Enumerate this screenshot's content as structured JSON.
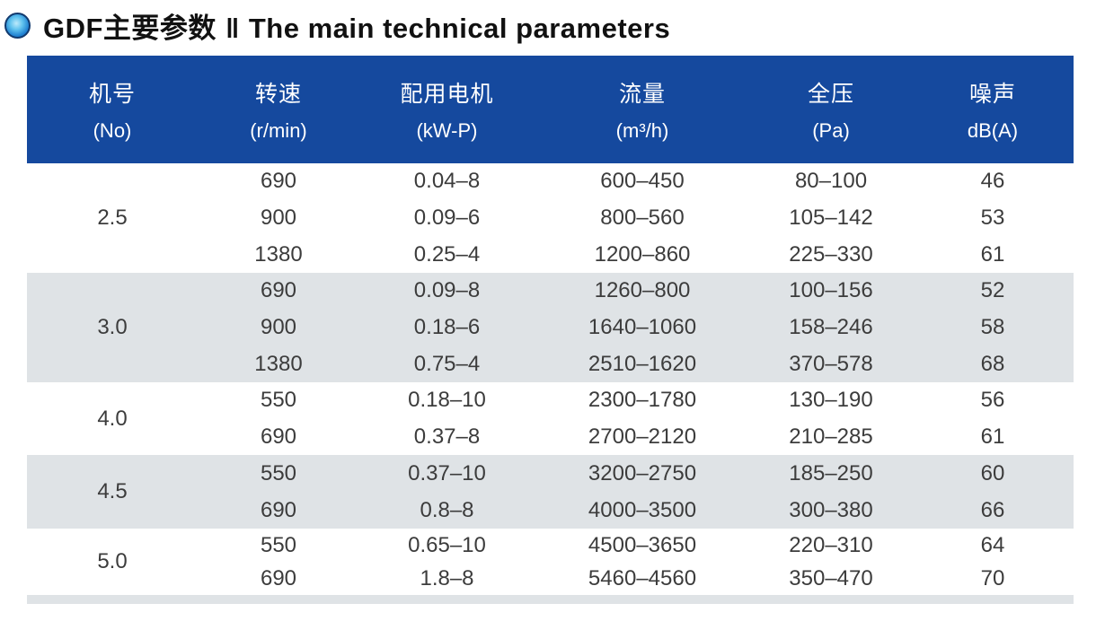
{
  "title": {
    "bullet_icon": "blue-sphere-bullet",
    "text_cn": "GDF主要参数",
    "separator": "‖",
    "text_en": "The main technical parameters"
  },
  "colors": {
    "header_bg": "#15499e",
    "header_text": "#ffffff",
    "alt_row_bg": "#dfe3e6",
    "body_text": "#3c3c3c",
    "title_text": "#111111"
  },
  "table": {
    "columns": [
      {
        "name": "机号",
        "unit": "(No)"
      },
      {
        "name": "转速",
        "unit": "(r/min)"
      },
      {
        "name": "配用电机",
        "unit": "(kW-P)"
      },
      {
        "name": "流量",
        "unit": "(m³/h)"
      },
      {
        "name": "全压",
        "unit": "(Pa)"
      },
      {
        "name": "噪声",
        "unit": "dB(A)"
      }
    ],
    "groups": [
      {
        "no": "2.5",
        "rows": [
          {
            "speed": "690",
            "motor": "0.04–8",
            "flow": "600–450",
            "pressure": "80–100",
            "noise": "46"
          },
          {
            "speed": "900",
            "motor": "0.09–6",
            "flow": "800–560",
            "pressure": "105–142",
            "noise": "53"
          },
          {
            "speed": "1380",
            "motor": "0.25–4",
            "flow": "1200–860",
            "pressure": "225–330",
            "noise": "61"
          }
        ]
      },
      {
        "no": "3.0",
        "rows": [
          {
            "speed": "690",
            "motor": "0.09–8",
            "flow": "1260–800",
            "pressure": "100–156",
            "noise": "52"
          },
          {
            "speed": "900",
            "motor": "0.18–6",
            "flow": "1640–1060",
            "pressure": "158–246",
            "noise": "58"
          },
          {
            "speed": "1380",
            "motor": "0.75–4",
            "flow": "2510–1620",
            "pressure": "370–578",
            "noise": "68"
          }
        ]
      },
      {
        "no": "4.0",
        "rows": [
          {
            "speed": "550",
            "motor": "0.18–10",
            "flow": "2300–1780",
            "pressure": "130–190",
            "noise": "56"
          },
          {
            "speed": "690",
            "motor": "0.37–8",
            "flow": "2700–2120",
            "pressure": "210–285",
            "noise": "61"
          }
        ]
      },
      {
        "no": "4.5",
        "rows": [
          {
            "speed": "550",
            "motor": "0.37–10",
            "flow": "3200–2750",
            "pressure": "185–250",
            "noise": "60"
          },
          {
            "speed": "690",
            "motor": "0.8–8",
            "flow": "4000–3500",
            "pressure": "300–380",
            "noise": "66"
          }
        ]
      },
      {
        "no": "5.0",
        "rows": [
          {
            "speed": "550",
            "motor": "0.65–10",
            "flow": "4500–3650",
            "pressure": "220–310",
            "noise": "64"
          },
          {
            "speed": "690",
            "motor": "1.8–8",
            "flow": "5460–4560",
            "pressure": "350–470",
            "noise": "70"
          }
        ]
      }
    ]
  }
}
